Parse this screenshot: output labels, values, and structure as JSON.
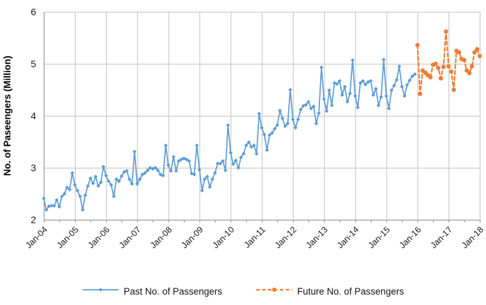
{
  "chart_data": {
    "type": "line",
    "title": "",
    "xlabel": "",
    "ylabel": "No. of Paseengers (Million)",
    "ylim": [
      2,
      6
    ],
    "yticks": [
      2,
      3,
      4,
      5,
      6
    ],
    "x_year_labels": [
      "Jan-04",
      "Jan-05",
      "Jan-06",
      "Jan-07",
      "Jan-08",
      "Jan-09",
      "Jan-10",
      "Jan-11",
      "Jan-12",
      "Jan-13",
      "Jan-14",
      "Jan-15",
      "Jan-16",
      "Jan-17",
      "Jan-18"
    ],
    "months_span": 168,
    "minor_tick_every_months": 6,
    "grid": true,
    "legend_position": "bottom",
    "grid_color": "#C2C2C2",
    "axis_color": "#8C8C8C",
    "text_color": "#1a1a1a",
    "series": [
      {
        "name": "Past No. of Passengers",
        "color": "#5B9BD5",
        "line_style": "solid",
        "marker": "diamond",
        "start_month": "Jan-04",
        "start_month_index": 0,
        "values": [
          2.41,
          2.19,
          2.26,
          2.27,
          2.27,
          2.38,
          2.25,
          2.45,
          2.5,
          2.62,
          2.58,
          2.9,
          2.67,
          2.56,
          2.45,
          2.19,
          2.47,
          2.65,
          2.8,
          2.7,
          2.83,
          2.65,
          2.72,
          3.02,
          2.85,
          2.74,
          2.67,
          2.45,
          2.78,
          2.74,
          2.84,
          2.92,
          2.94,
          2.78,
          2.69,
          3.31,
          2.69,
          2.78,
          2.87,
          2.9,
          2.95,
          3.0,
          2.98,
          3.0,
          2.95,
          2.87,
          2.85,
          3.43,
          3.05,
          2.94,
          3.21,
          2.94,
          3.13,
          3.16,
          3.18,
          3.16,
          3.13,
          2.89,
          2.87,
          3.43,
          2.96,
          2.56,
          2.78,
          2.83,
          2.63,
          2.78,
          2.9,
          3.08,
          3.08,
          3.13,
          2.95,
          3.82,
          3.29,
          3.07,
          3.14,
          3.0,
          3.2,
          3.27,
          3.43,
          3.49,
          3.4,
          3.43,
          3.27,
          4.04,
          3.77,
          3.64,
          3.34,
          3.63,
          3.67,
          3.75,
          3.82,
          4.1,
          3.95,
          3.8,
          3.85,
          4.5,
          3.93,
          3.77,
          3.93,
          4.12,
          4.19,
          4.21,
          4.27,
          4.14,
          4.18,
          3.85,
          4.05,
          4.93,
          4.32,
          4.09,
          4.49,
          4.2,
          4.63,
          4.61,
          4.67,
          4.4,
          4.56,
          4.27,
          4.43,
          5.07,
          4.38,
          4.16,
          4.63,
          4.67,
          4.6,
          4.65,
          4.67,
          4.4,
          4.52,
          4.2,
          4.36,
          5.08,
          4.38,
          4.14,
          4.49,
          4.58,
          4.69,
          4.95,
          4.56,
          4.38,
          4.59,
          4.68,
          4.76,
          4.8
        ]
      },
      {
        "name": "Future No. of Passengers",
        "color": "#ED7D31",
        "line_style": "dashed",
        "marker": "circle",
        "start_month": "Jan-16",
        "start_month_index": 144,
        "values": [
          5.36,
          4.42,
          4.87,
          4.83,
          4.78,
          4.74,
          4.98,
          5.0,
          4.92,
          4.72,
          4.94,
          5.62,
          4.95,
          4.85,
          4.5,
          5.25,
          5.22,
          5.09,
          5.07,
          4.87,
          4.82,
          4.95,
          5.22,
          5.28,
          5.15
        ]
      }
    ]
  }
}
